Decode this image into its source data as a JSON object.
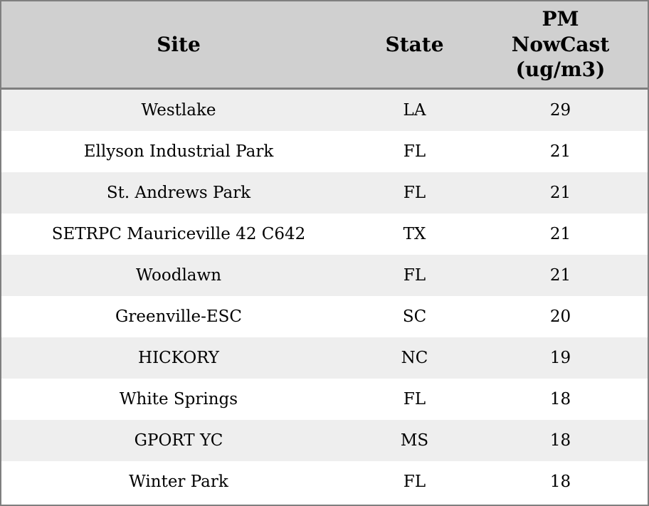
{
  "chart_data": {
    "type": "table",
    "columns": [
      "Site",
      "State",
      "PM NowCast (ug/m3)"
    ],
    "rows": [
      [
        "Westlake",
        "LA",
        29
      ],
      [
        "Ellyson Industrial Park",
        "FL",
        21
      ],
      [
        "St. Andrews Park",
        "FL",
        21
      ],
      [
        "SETRPC Mauriceville 42 C642",
        "TX",
        21
      ],
      [
        "Woodlawn",
        "FL",
        21
      ],
      [
        "Greenville-ESC",
        "SC",
        20
      ],
      [
        "HICKORY",
        "NC",
        19
      ],
      [
        "White Springs",
        "FL",
        18
      ],
      [
        "GPORT YC",
        "MS",
        18
      ],
      [
        "Winter Park",
        "FL",
        18
      ]
    ],
    "layout": {
      "grid": "off",
      "striped": true,
      "header_position": "top"
    }
  },
  "colors": {
    "header_background": "#d0d0d0",
    "stripe_background": "#eeeeee",
    "row_background": "#ffffff",
    "border": "#7f7f7f",
    "text": "#000000"
  }
}
